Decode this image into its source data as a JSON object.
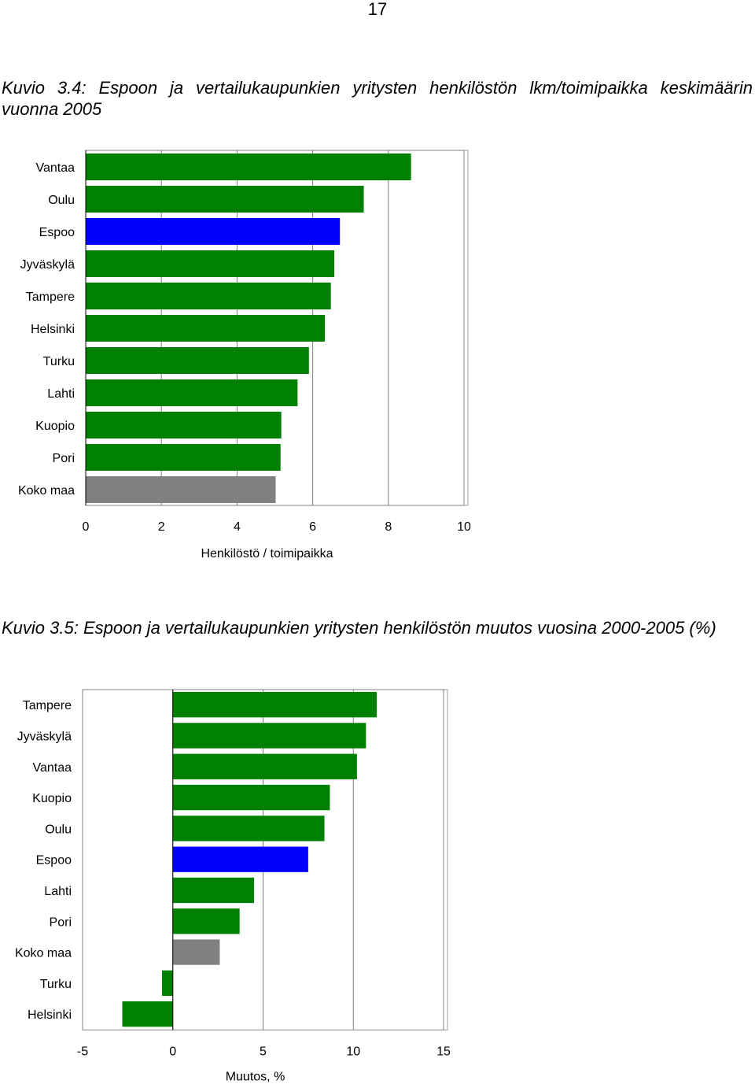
{
  "page_number": "17",
  "colors": {
    "default": "#008000",
    "highlight": "#0000ff",
    "national": "#808080",
    "grid": "#808080"
  },
  "chart_data": [
    {
      "type": "bar",
      "orientation": "horizontal",
      "title": "Kuvio 3.4: Espoon ja vertailukaupunkien yritysten henkilöstön lkm/toimipaikka keskimäärin vuonna 2005",
      "xlabel": "Henkilöstö / toimipaikka",
      "ylabel": "",
      "xlim": [
        0,
        10
      ],
      "xticks": [
        0,
        2,
        4,
        6,
        8,
        10
      ],
      "grid": true,
      "categories": [
        "Vantaa",
        "Oulu",
        "Espoo",
        "Jyväskylä",
        "Tampere",
        "Helsinki",
        "Turku",
        "Lahti",
        "Kuopio",
        "Pori",
        "Koko maa"
      ],
      "values": [
        8.6,
        7.35,
        6.72,
        6.57,
        6.48,
        6.32,
        5.9,
        5.6,
        5.17,
        5.15,
        5.02
      ],
      "colors": [
        "#008000",
        "#008000",
        "#0000ff",
        "#008000",
        "#008000",
        "#008000",
        "#008000",
        "#008000",
        "#008000",
        "#008000",
        "#808080"
      ]
    },
    {
      "type": "bar",
      "orientation": "horizontal",
      "title": "Kuvio 3.5: Espoon ja vertailukaupunkien yritysten henkilöstön muutos vuosina 2000-2005 (%)",
      "xlabel": "Muutos, %",
      "ylabel": "",
      "xlim": [
        -5,
        15
      ],
      "xticks": [
        -5,
        0,
        5,
        10,
        15
      ],
      "grid": true,
      "categories": [
        "Tampere",
        "Jyväskylä",
        "Vantaa",
        "Kuopio",
        "Oulu",
        "Espoo",
        "Lahti",
        "Pori",
        "Koko maa",
        "Turku",
        "Helsinki"
      ],
      "values": [
        11.3,
        10.7,
        10.2,
        8.7,
        8.4,
        7.5,
        4.5,
        3.7,
        2.6,
        -0.6,
        -2.8
      ],
      "colors": [
        "#008000",
        "#008000",
        "#008000",
        "#008000",
        "#008000",
        "#0000ff",
        "#008000",
        "#008000",
        "#808080",
        "#008000",
        "#008000"
      ]
    }
  ]
}
